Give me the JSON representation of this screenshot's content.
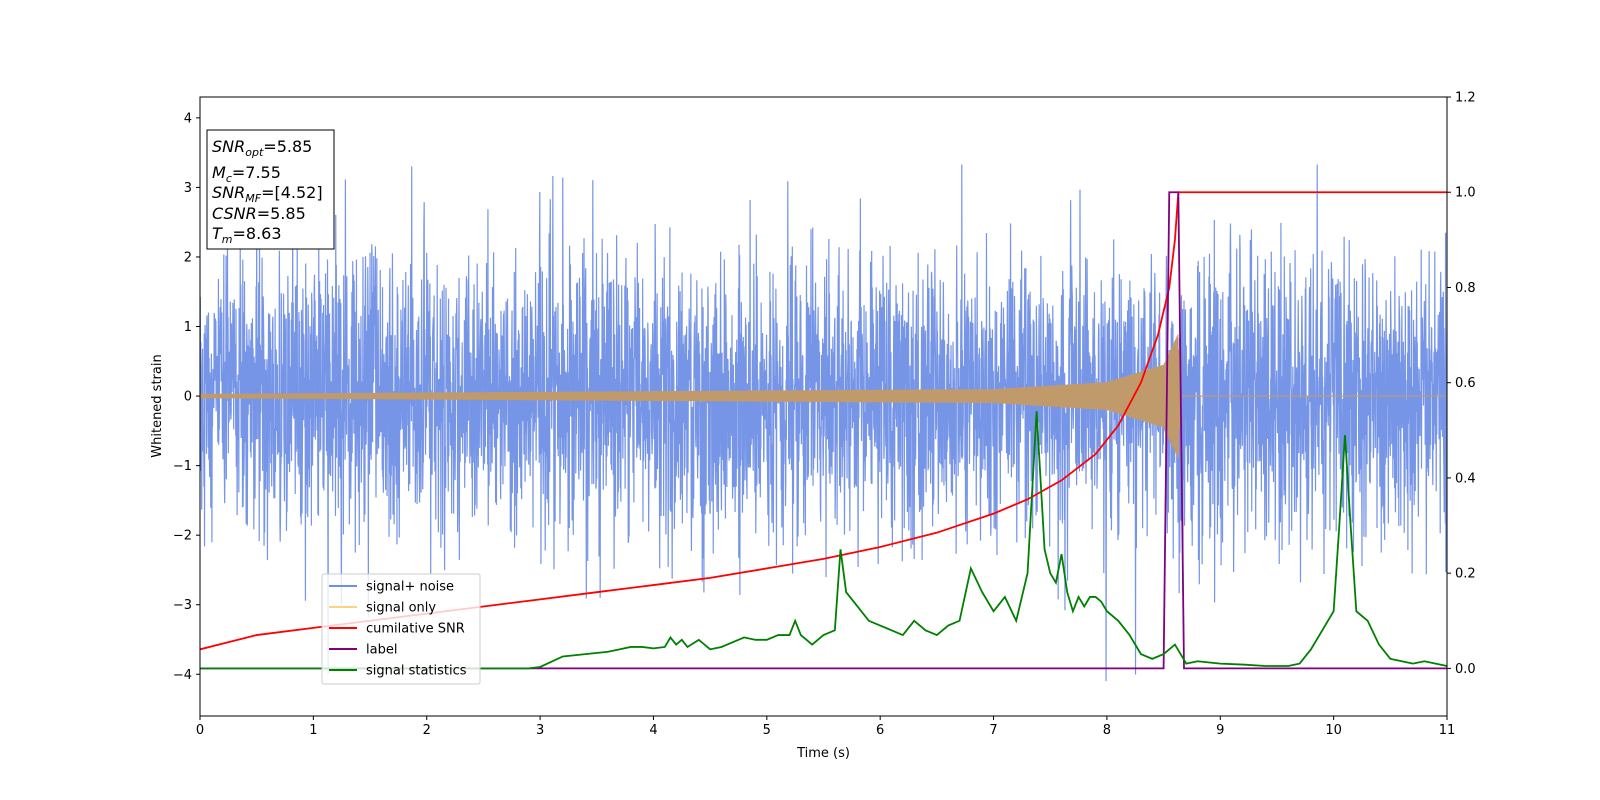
{
  "chart_data": {
    "type": "line",
    "xlabel": "Time (s)",
    "ylabel": "Whitened strain",
    "xlim": [
      0,
      11
    ],
    "ylim": [
      -4.6,
      4.3
    ],
    "y2lim": [
      -0.1,
      1.2
    ],
    "grid": false,
    "legend_position": "lower-left",
    "x_ticks": [
      "0",
      "1",
      "2",
      "3",
      "4",
      "5",
      "6",
      "7",
      "8",
      "9",
      "10",
      "11"
    ],
    "y_ticks": [
      "−4",
      "−3",
      "−2",
      "−1",
      "0",
      "1",
      "2",
      "3",
      "4"
    ],
    "y2_ticks": [
      "0.0",
      "0.2",
      "0.4",
      "0.6",
      "0.8",
      "1.0",
      "1.2"
    ],
    "colors": {
      "signal_noise": "#6f8fe6",
      "signal_only": "#c09a6b",
      "signal_only_legend": "#ffd27f",
      "cumulative": "#ff0000",
      "label": "#800080",
      "statistics": "#008000"
    },
    "info_box": {
      "snr_opt_value": "=5.85",
      "mc_value": "=7.55",
      "snr_mf_value": "=[4.52]",
      "csnr_value": "=5.85",
      "tm_value": "=8.63"
    },
    "series": [
      {
        "name": "signal+ noise",
        "axis": "left",
        "noise_sigma": 1.0,
        "x_range": [
          0,
          11
        ]
      },
      {
        "name": "signal only",
        "axis": "left",
        "chirp_end": 8.63,
        "envelope": [
          [
            0,
            0.03
          ],
          [
            7,
            0.1
          ],
          [
            8,
            0.2
          ],
          [
            8.5,
            0.45
          ],
          [
            8.63,
            0.9
          ],
          [
            8.65,
            0.0
          ],
          [
            11,
            0.0
          ]
        ]
      },
      {
        "name": "cumilative SNR",
        "axis": "right",
        "x": [
          0,
          0.5,
          1,
          1.5,
          2,
          2.5,
          3,
          3.5,
          4,
          4.5,
          5,
          5.5,
          6,
          6.5,
          7,
          7.3,
          7.6,
          7.9,
          8.1,
          8.3,
          8.45,
          8.55,
          8.6,
          8.63,
          11
        ],
        "y": [
          0.04,
          0.07,
          0.085,
          0.1,
          0.115,
          0.13,
          0.145,
          0.16,
          0.175,
          0.19,
          0.21,
          0.23,
          0.255,
          0.285,
          0.325,
          0.355,
          0.395,
          0.45,
          0.51,
          0.6,
          0.7,
          0.8,
          0.9,
          1.0,
          1.0
        ]
      },
      {
        "name": "label",
        "axis": "right",
        "x": [
          0,
          8.5,
          8.55,
          8.63,
          8.68,
          11
        ],
        "y": [
          0,
          0,
          1,
          1,
          0,
          0
        ]
      },
      {
        "name": "signal statistics",
        "axis": "right",
        "x": [
          0,
          0.5,
          1,
          1.5,
          2,
          2.5,
          2.9,
          3.0,
          3.2,
          3.4,
          3.6,
          3.7,
          3.8,
          3.9,
          4.0,
          4.1,
          4.15,
          4.2,
          4.25,
          4.3,
          4.4,
          4.5,
          4.6,
          4.7,
          4.8,
          4.9,
          5.0,
          5.1,
          5.2,
          5.25,
          5.3,
          5.4,
          5.5,
          5.6,
          5.65,
          5.7,
          5.8,
          5.9,
          6.0,
          6.1,
          6.2,
          6.3,
          6.4,
          6.5,
          6.6,
          6.7,
          6.8,
          6.9,
          7.0,
          7.1,
          7.2,
          7.3,
          7.38,
          7.45,
          7.5,
          7.55,
          7.6,
          7.65,
          7.7,
          7.75,
          7.8,
          7.85,
          7.9,
          7.95,
          8.0,
          8.1,
          8.2,
          8.3,
          8.4,
          8.5,
          8.6,
          8.7,
          8.8,
          9.0,
          9.2,
          9.4,
          9.6,
          9.7,
          9.8,
          9.9,
          10.0,
          10.05,
          10.1,
          10.15,
          10.2,
          10.3,
          10.4,
          10.5,
          10.6,
          10.7,
          10.8,
          10.9,
          11.0
        ],
        "y": [
          0.0,
          0.0,
          0.0,
          0.0,
          0.0,
          0.0,
          0.0,
          0.003,
          0.025,
          0.03,
          0.035,
          0.04,
          0.045,
          0.045,
          0.042,
          0.045,
          0.065,
          0.05,
          0.06,
          0.045,
          0.06,
          0.04,
          0.045,
          0.055,
          0.065,
          0.06,
          0.06,
          0.07,
          0.07,
          0.1,
          0.07,
          0.05,
          0.07,
          0.08,
          0.25,
          0.16,
          0.13,
          0.1,
          0.09,
          0.08,
          0.07,
          0.1,
          0.08,
          0.07,
          0.09,
          0.1,
          0.21,
          0.16,
          0.12,
          0.15,
          0.1,
          0.2,
          0.54,
          0.25,
          0.2,
          0.18,
          0.24,
          0.16,
          0.12,
          0.15,
          0.13,
          0.15,
          0.15,
          0.14,
          0.12,
          0.1,
          0.07,
          0.03,
          0.02,
          0.03,
          0.05,
          0.01,
          0.015,
          0.01,
          0.008,
          0.005,
          0.005,
          0.01,
          0.04,
          0.08,
          0.12,
          0.3,
          0.49,
          0.3,
          0.12,
          0.1,
          0.05,
          0.02,
          0.015,
          0.01,
          0.015,
          0.01,
          0.005
        ]
      }
    ]
  }
}
